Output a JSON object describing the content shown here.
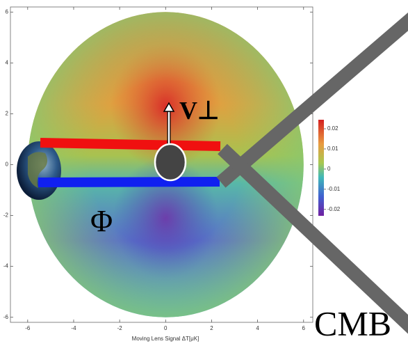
{
  "chart_data": {
    "type": "density",
    "xlabel": "Moving Lens Signal ΔT[μK]",
    "xlim": [
      -6.75,
      6.4
    ],
    "ylim": [
      -6.2,
      6.2
    ],
    "xticks": [
      -6,
      -4,
      -2,
      0,
      2,
      4,
      6
    ],
    "yticks": [
      -6,
      -4,
      -2,
      0,
      2,
      4,
      6
    ],
    "disk_radius": 6,
    "colorbar": {
      "lim": [
        -0.0232,
        0.0245
      ],
      "ticks": [
        0.02,
        0.01,
        0,
        -0.01,
        -0.02
      ]
    },
    "annotations": [
      "V⊥",
      "Φ",
      "CMB"
    ]
  }
}
